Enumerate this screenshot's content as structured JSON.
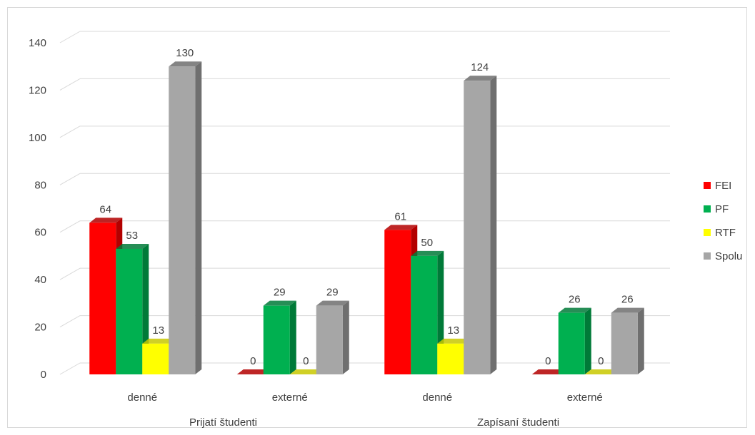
{
  "chart_data": {
    "type": "bar",
    "title": "",
    "xlabel": "",
    "ylabel": "",
    "ylim": [
      0,
      140
    ],
    "yticks": [
      0,
      20,
      40,
      60,
      80,
      100,
      120,
      140
    ],
    "grid": true,
    "legend_position": "right",
    "groups": [
      {
        "label": "Prijatí študenti",
        "categories": [
          "denné",
          "externé"
        ]
      },
      {
        "label": "Zapísaní študenti",
        "categories": [
          "denné",
          "externé"
        ]
      }
    ],
    "categories": [
      "denné",
      "externé",
      "denné",
      "externé"
    ],
    "series": [
      {
        "name": "FEI",
        "color": "#ff0000",
        "side_color": "#b30000",
        "values": [
          64,
          0,
          61,
          0
        ]
      },
      {
        "name": "PF",
        "color": "#00b050",
        "side_color": "#007a38",
        "values": [
          53,
          29,
          50,
          26
        ]
      },
      {
        "name": "RTF",
        "color": "#ffff00",
        "side_color": "#c8c800",
        "values": [
          13,
          0,
          13,
          0
        ]
      },
      {
        "name": "Spolu",
        "color": "#a6a6a6",
        "side_color": "#6f6f6f",
        "values": [
          130,
          29,
          124,
          26
        ]
      }
    ]
  }
}
